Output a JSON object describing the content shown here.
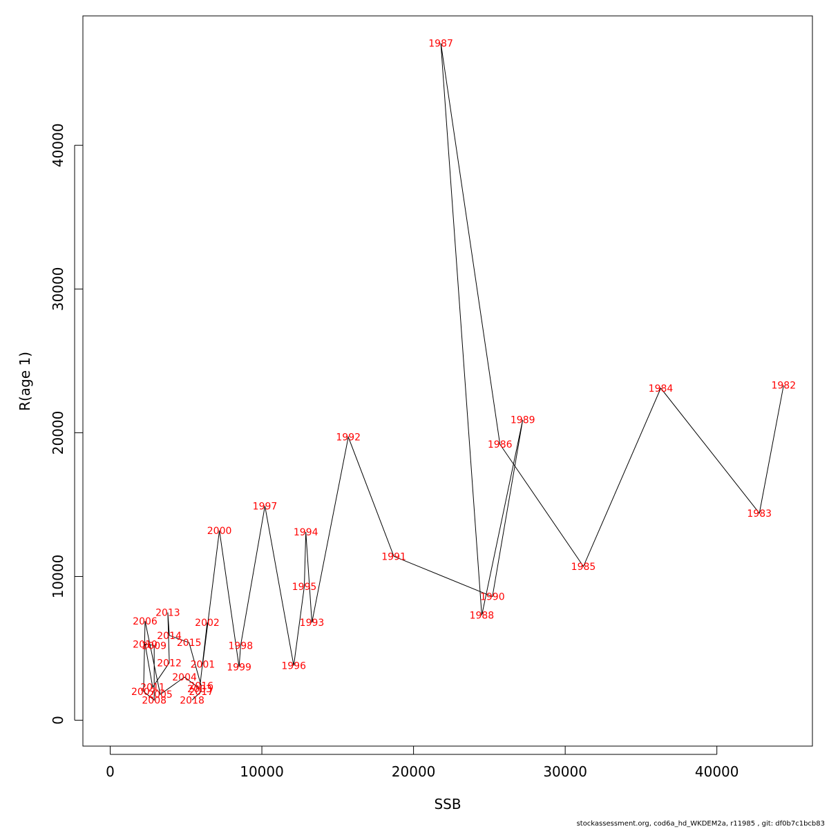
{
  "chart_data": {
    "type": "line",
    "title": "",
    "xlabel": "SSB",
    "ylabel": "R(age 1)",
    "xlim": [
      -1800,
      46300
    ],
    "ylim": [
      -1800,
      49000
    ],
    "xticks": [
      0,
      10000,
      20000,
      30000,
      40000
    ],
    "yticks": [
      0,
      10000,
      20000,
      30000,
      40000
    ],
    "grid": false,
    "line_color": "#000000",
    "label_color": "#ff0000",
    "points": [
      {
        "year": "1982",
        "x": 44400,
        "y": 23300
      },
      {
        "year": "1983",
        "x": 42800,
        "y": 14400
      },
      {
        "year": "1984",
        "x": 36300,
        "y": 23100
      },
      {
        "year": "1985",
        "x": 31200,
        "y": 10700
      },
      {
        "year": "1986",
        "x": 25700,
        "y": 19200
      },
      {
        "year": "1987",
        "x": 21800,
        "y": 47100
      },
      {
        "year": "1988",
        "x": 24500,
        "y": 7300
      },
      {
        "year": "1989",
        "x": 27200,
        "y": 20900
      },
      {
        "year": "1990",
        "x": 25200,
        "y": 8600
      },
      {
        "year": "1991",
        "x": 18700,
        "y": 11400
      },
      {
        "year": "1992",
        "x": 15700,
        "y": 19700
      },
      {
        "year": "1993",
        "x": 13300,
        "y": 6800
      },
      {
        "year": "1994",
        "x": 12900,
        "y": 13100
      },
      {
        "year": "1995",
        "x": 12800,
        "y": 9300
      },
      {
        "year": "1996",
        "x": 12100,
        "y": 3800
      },
      {
        "year": "1997",
        "x": 10200,
        "y": 14900
      },
      {
        "year": "1998",
        "x": 8600,
        "y": 5200
      },
      {
        "year": "1999",
        "x": 8500,
        "y": 3700
      },
      {
        "year": "2000",
        "x": 7200,
        "y": 13200
      },
      {
        "year": "2001",
        "x": 6100,
        "y": 3900
      },
      {
        "year": "2002",
        "x": 6400,
        "y": 6800
      },
      {
        "year": "2003",
        "x": 5900,
        "y": 2200
      },
      {
        "year": "2004",
        "x": 4900,
        "y": 3000
      },
      {
        "year": "2005",
        "x": 3300,
        "y": 1800
      },
      {
        "year": "2006",
        "x": 2300,
        "y": 6900
      },
      {
        "year": "2007",
        "x": 2200,
        "y": 2000
      },
      {
        "year": "2008",
        "x": 2900,
        "y": 1400
      },
      {
        "year": "2009",
        "x": 2900,
        "y": 5200
      },
      {
        "year": "2010",
        "x": 2300,
        "y": 5300
      },
      {
        "year": "2011",
        "x": 2800,
        "y": 2300
      },
      {
        "year": "2012",
        "x": 3900,
        "y": 4000
      },
      {
        "year": "2013",
        "x": 3800,
        "y": 7500
      },
      {
        "year": "2014",
        "x": 3900,
        "y": 5900
      },
      {
        "year": "2015",
        "x": 5200,
        "y": 5400
      },
      {
        "year": "2016",
        "x": 6000,
        "y": 2400
      },
      {
        "year": "2017",
        "x": 6000,
        "y": 2000
      },
      {
        "year": "2018",
        "x": 5400,
        "y": 1400
      }
    ]
  },
  "footer": "stockassessment.org, cod6a_hd_WKDEM2a, r11985 , git: df0b7c1bcb83"
}
